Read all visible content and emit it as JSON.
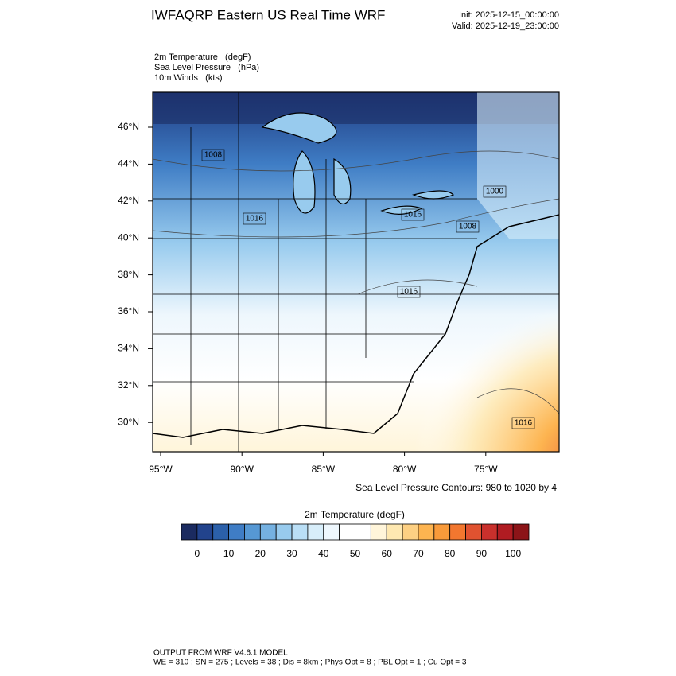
{
  "header": {
    "title": "IWFAQRP Eastern US Real Time WRF",
    "init": "Init: 2025-12-15_00:00:00",
    "valid": "Valid: 2025-12-19_23:00:00"
  },
  "fields": [
    "2m Temperature   (degF)",
    "Sea Level Pressure   (hPa)",
    "10m Winds   (kts)"
  ],
  "map": {
    "lat_labels": [
      "46°N",
      "44°N",
      "42°N",
      "40°N",
      "38°N",
      "36°N",
      "34°N",
      "32°N",
      "30°N"
    ],
    "lon_labels": [
      "95°W",
      "90°W",
      "85°W",
      "80°W",
      "75°W"
    ],
    "contour_labels": [
      "1008",
      "1016",
      "1016",
      "1000",
      "1008",
      "1016",
      "1016"
    ],
    "contour_note": "Sea Level Pressure Contours: 980 to 1020 by 4"
  },
  "colorbar": {
    "title": "2m Temperature  (degF)",
    "ticks": [
      0,
      10,
      20,
      30,
      40,
      50,
      60,
      70,
      80,
      90,
      100
    ],
    "colors": [
      "#1b2b60",
      "#22438c",
      "#2b60aa",
      "#3f7dc5",
      "#5698d4",
      "#75b1e1",
      "#98cbee",
      "#badff6",
      "#d8eefa",
      "#eef7fd",
      "#ffffff",
      "#ffffff",
      "#fff5da",
      "#fee8b1",
      "#fdd083",
      "#fdb450",
      "#f89a3a",
      "#f2772f",
      "#e05230",
      "#c9302c",
      "#b01c22",
      "#8c1418"
    ]
  },
  "footer": [
    "OUTPUT FROM WRF V4.6.1 MODEL",
    "WE = 310 ; SN = 275 ; Levels = 38 ; Dis = 8km ; Phys Opt = 8 ; PBL Opt = 1 ; Cu Opt = 3"
  ]
}
